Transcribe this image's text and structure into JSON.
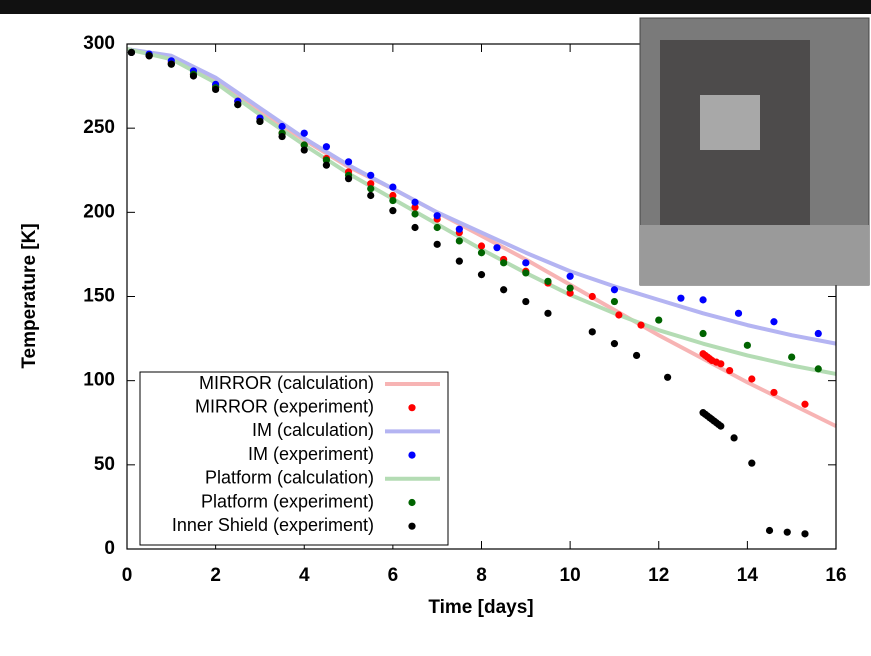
{
  "chart_data": {
    "type": "line",
    "xlabel": "Time [days]",
    "ylabel": "Temperature [K]",
    "xlim": [
      0,
      16
    ],
    "xticks": [
      0,
      2,
      4,
      6,
      8,
      10,
      12,
      14,
      16
    ],
    "ylim": [
      0,
      300
    ],
    "yticks": [
      0,
      50,
      100,
      150,
      200,
      250,
      300
    ],
    "legend": "lower left",
    "series": [
      {
        "name": "MIRROR (calculation)",
        "style": "line",
        "color": "#f7b4b4",
        "x": [
          0,
          1,
          2,
          3,
          4,
          5,
          6,
          7,
          8,
          9,
          10,
          11,
          12,
          13,
          14,
          15,
          16
        ],
        "values": [
          297,
          292,
          278,
          260,
          243,
          227,
          214,
          200,
          186,
          172,
          157,
          142,
          127,
          113,
          99,
          86,
          73
        ]
      },
      {
        "name": "MIRROR (experiment)",
        "style": "points",
        "color": "#ff0000",
        "x": [
          0.1,
          0.5,
          1.0,
          1.5,
          2.0,
          2.5,
          3.0,
          3.5,
          4.0,
          4.5,
          5.0,
          5.5,
          6.0,
          6.5,
          7.0,
          7.5,
          8.0,
          8.5,
          9.0,
          9.5,
          10.0,
          10.5,
          11.1,
          11.6,
          13.0,
          13.05,
          13.1,
          13.15,
          13.2,
          13.3,
          13.4,
          13.6,
          14.1,
          14.6,
          15.3
        ],
        "values": [
          295,
          293,
          289,
          282,
          275,
          266,
          256,
          247,
          240,
          232,
          224,
          217,
          210,
          203,
          196,
          188,
          180,
          172,
          165,
          158,
          152,
          150,
          139,
          133,
          116,
          115,
          114,
          113,
          112,
          111,
          110,
          106,
          101,
          93,
          86
        ]
      },
      {
        "name": "IM (calculation)",
        "style": "line",
        "color": "#b4b4f2",
        "x": [
          0,
          1,
          2,
          3,
          4,
          5,
          6,
          7,
          8,
          9,
          10,
          11,
          12,
          13,
          14,
          15,
          16
        ],
        "values": [
          297,
          293,
          280,
          262,
          244,
          228,
          214,
          200,
          188,
          176,
          165,
          156,
          148,
          140,
          133,
          127,
          122
        ]
      },
      {
        "name": "IM (experiment)",
        "style": "points",
        "color": "#0000ff",
        "x": [
          0.1,
          0.5,
          1.0,
          1.5,
          2.0,
          2.5,
          3.0,
          3.5,
          4.0,
          4.5,
          5.0,
          5.5,
          6.0,
          6.5,
          7.0,
          7.5,
          8.35,
          9.0,
          10.0,
          11.0,
          12.5,
          13.0,
          13.8,
          14.6,
          15.6
        ],
        "values": [
          295,
          294,
          290,
          284,
          276,
          266,
          256,
          251,
          247,
          239,
          230,
          222,
          215,
          206,
          198,
          190,
          179,
          170,
          162,
          154,
          149,
          148,
          140,
          135,
          128
        ]
      },
      {
        "name": "Platform (calculation)",
        "style": "line",
        "color": "#b4dcb4",
        "x": [
          0,
          1,
          2,
          3,
          4,
          5,
          6,
          7,
          8,
          9,
          10,
          11,
          12,
          13,
          14,
          15,
          16
        ],
        "values": [
          297,
          291,
          277,
          258,
          240,
          223,
          208,
          193,
          178,
          164,
          151,
          140,
          130,
          122,
          115,
          109,
          104
        ]
      },
      {
        "name": "Platform (experiment)",
        "style": "points",
        "color": "#006400",
        "x": [
          0.1,
          0.5,
          1.0,
          1.5,
          2.0,
          2.5,
          3.0,
          3.5,
          4.0,
          4.5,
          5.0,
          5.5,
          6.0,
          6.5,
          7.0,
          7.5,
          8.0,
          8.5,
          9.0,
          9.5,
          10.0,
          11.0,
          12.0,
          13.0,
          14.0,
          15.0,
          15.6
        ],
        "values": [
          295,
          293,
          288,
          282,
          274,
          264,
          254,
          247,
          240,
          231,
          222,
          214,
          207,
          199,
          191,
          183,
          176,
          170,
          164,
          159,
          155,
          147,
          136,
          128,
          121,
          114,
          107
        ]
      },
      {
        "name": "Inner Shield (experiment)",
        "style": "points",
        "color": "#000000",
        "x": [
          0.1,
          0.5,
          1.0,
          1.5,
          2.0,
          2.5,
          3.0,
          3.5,
          4.0,
          4.5,
          5.0,
          5.5,
          6.0,
          6.5,
          7.0,
          7.5,
          8.0,
          8.5,
          9.0,
          9.5,
          10.5,
          11.0,
          11.5,
          12.2,
          13.0,
          13.05,
          13.1,
          13.15,
          13.2,
          13.25,
          13.3,
          13.35,
          13.4,
          13.7,
          14.1,
          14.5,
          14.9,
          15.3
        ],
        "values": [
          295,
          293,
          288,
          281,
          273,
          264,
          254,
          245,
          237,
          228,
          220,
          210,
          201,
          191,
          181,
          171,
          163,
          154,
          147,
          140,
          129,
          122,
          115,
          102,
          81,
          80,
          79,
          78,
          77,
          76,
          75,
          74,
          73,
          66,
          51,
          11,
          10,
          9
        ]
      }
    ]
  }
}
